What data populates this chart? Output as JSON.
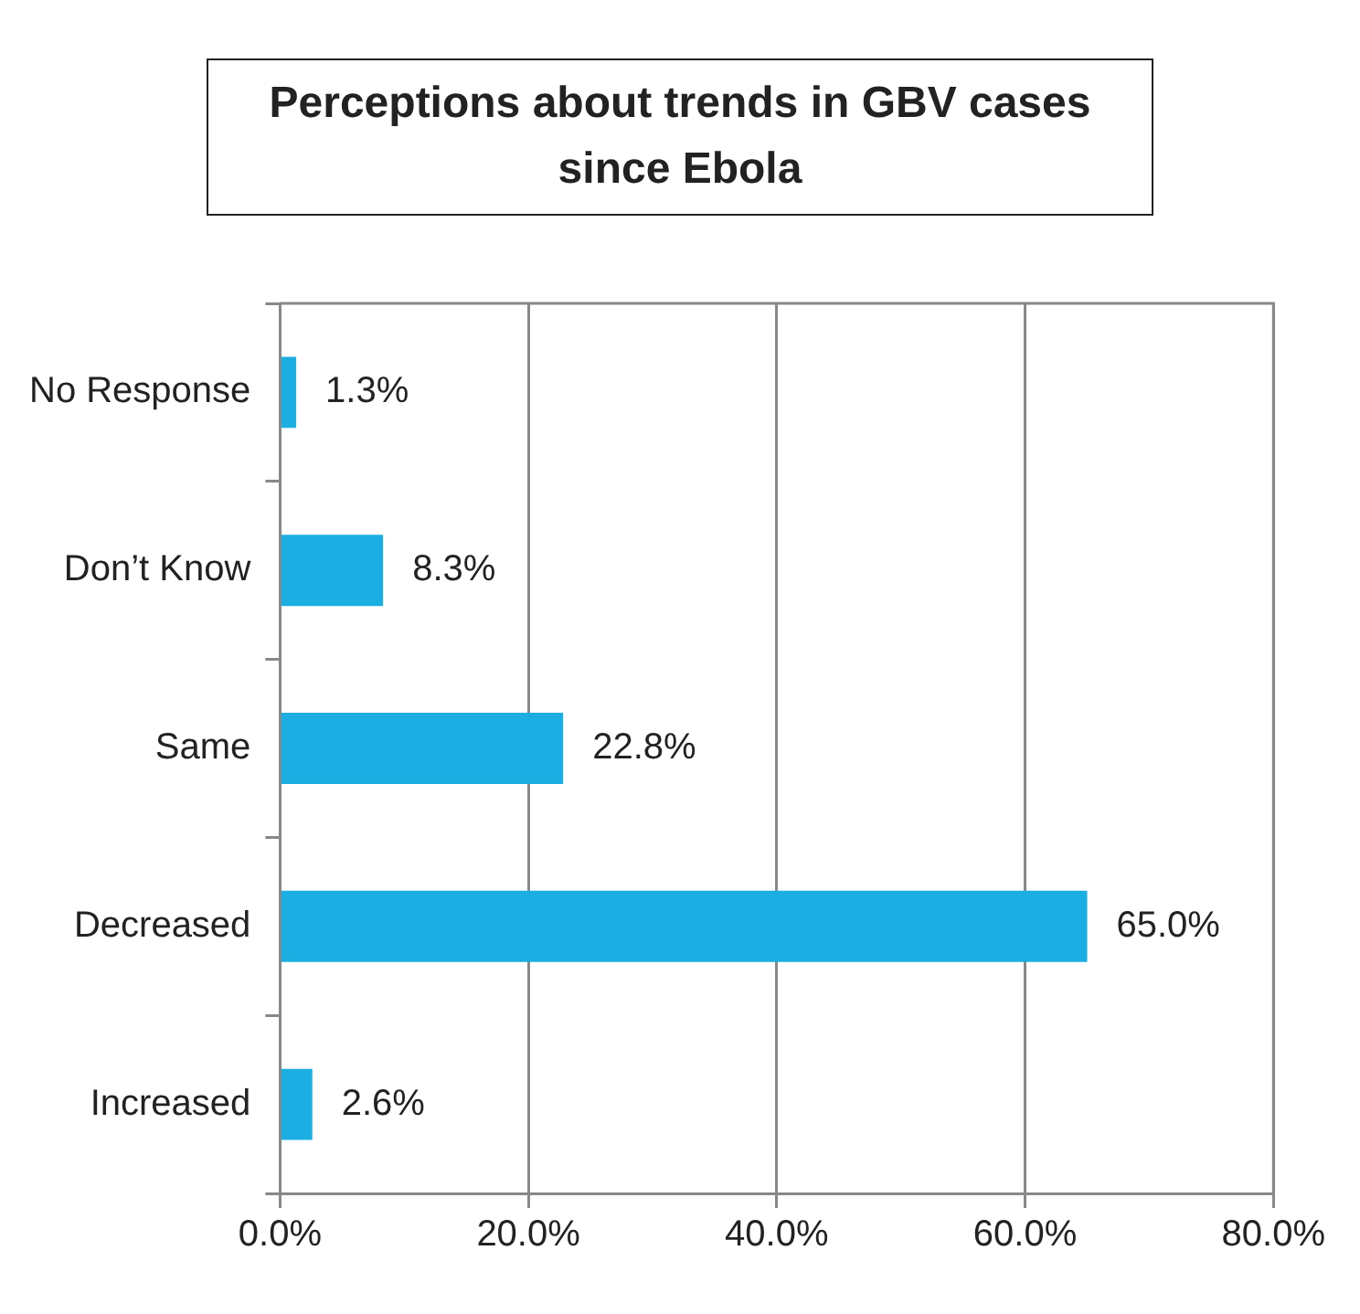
{
  "chart_data": {
    "type": "bar",
    "orientation": "horizontal",
    "title": "Perceptions about trends in GBV cases since Ebola",
    "categories": [
      "No Response",
      "Don’t Know",
      "Same",
      "Decreased",
      "Increased"
    ],
    "values": [
      1.3,
      8.3,
      22.8,
      65.0,
      2.6
    ],
    "value_labels": [
      "1.3%",
      "8.3%",
      "22.8%",
      "65.0%",
      "2.6%"
    ],
    "color": "#1aaee3",
    "xlim": [
      0,
      80
    ],
    "xticks": [
      {
        "value": 0,
        "label": "0.0%"
      },
      {
        "value": 20,
        "label": "20.0%"
      },
      {
        "value": 40,
        "label": "40.0%"
      },
      {
        "value": 60,
        "label": "60.0%"
      },
      {
        "value": 80,
        "label": "80.0%"
      }
    ],
    "grid": "x",
    "legend": false
  }
}
